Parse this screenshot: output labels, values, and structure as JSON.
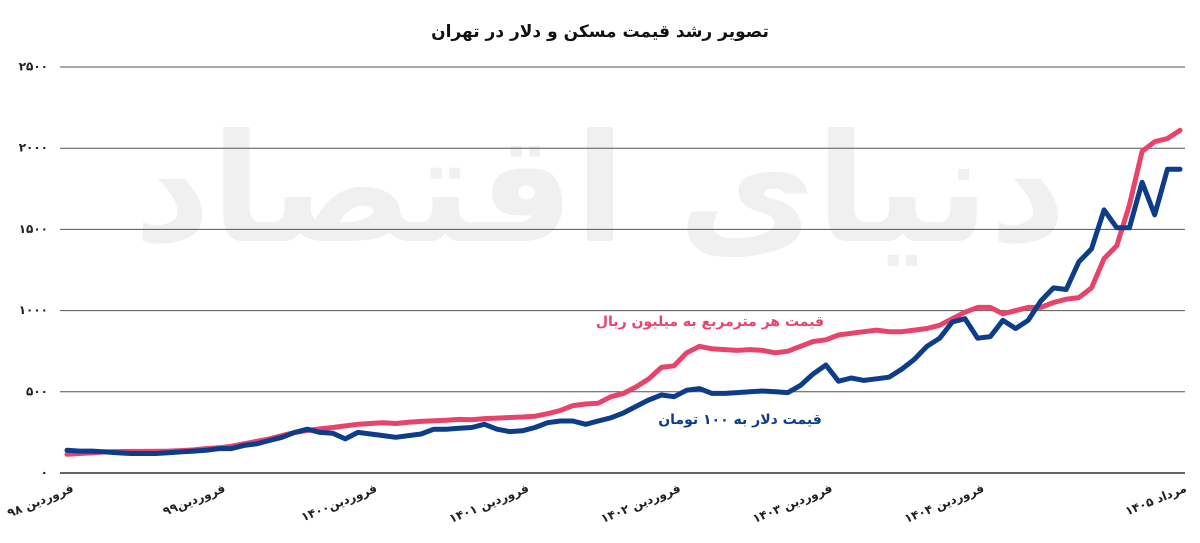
{
  "chart_data": {
    "type": "line",
    "title": "تصویر رشد قیمت مسکن  و دلار در تهران",
    "watermark": "دنیای اقتصاد",
    "categories": [
      "فروردین ۹۸",
      null,
      null,
      null,
      null,
      null,
      null,
      null,
      null,
      null,
      null,
      null,
      "فروردین۹۹",
      null,
      null,
      null,
      null,
      null,
      null,
      null,
      null,
      null,
      null,
      null,
      "فروردین۱۴۰۰",
      null,
      null,
      null,
      null,
      null,
      null,
      null,
      null,
      null,
      null,
      null,
      "فروردین ۱۴۰۱",
      null,
      null,
      null,
      null,
      null,
      null,
      null,
      null,
      null,
      null,
      null,
      "فروردین ۱۴۰۲",
      null,
      null,
      null,
      null,
      null,
      null,
      null,
      null,
      null,
      null,
      null,
      "فروردین ۱۴۰۳",
      null,
      null,
      null,
      null,
      null,
      null,
      null,
      null,
      null,
      null,
      null,
      "فروردین ۱۴۰۴",
      null,
      null,
      null,
      null,
      null,
      null,
      null,
      null,
      null,
      null,
      null,
      null,
      null,
      null,
      null,
      "مرداد ۱۴۰۵"
    ],
    "series": [
      {
        "name": "قیمت هر مترمربع به میلیون ریال",
        "color": "#e8436a",
        "values": [
          115,
          120,
          125,
          130,
          132,
          133,
          133,
          134,
          135,
          138,
          142,
          150,
          155,
          165,
          180,
          195,
          210,
          230,
          250,
          262,
          272,
          280,
          290,
          300,
          305,
          310,
          305,
          312,
          318,
          322,
          325,
          330,
          328,
          335,
          338,
          342,
          345,
          350,
          365,
          385,
          415,
          425,
          430,
          470,
          490,
          530,
          580,
          650,
          660,
          740,
          780,
          765,
          760,
          755,
          760,
          755,
          740,
          750,
          780,
          810,
          820,
          850,
          860,
          870,
          880,
          870,
          870,
          880,
          890,
          910,
          950,
          990,
          1020,
          1020,
          980,
          1000,
          1020,
          1020,
          1050,
          1070,
          1080,
          1140,
          1320,
          1400,
          1650,
          1980,
          2040,
          2060,
          2110
        ]
      },
      {
        "name": "قیمت دلار به ۱۰۰ تومان",
        "color": "#0d3d8a",
        "values": [
          140,
          135,
          135,
          130,
          125,
          120,
          120,
          120,
          125,
          130,
          135,
          140,
          150,
          150,
          170,
          180,
          200,
          220,
          250,
          270,
          250,
          245,
          210,
          250,
          240,
          230,
          220,
          230,
          240,
          270,
          270,
          275,
          280,
          300,
          270,
          255,
          260,
          280,
          310,
          320,
          320,
          300,
          320,
          340,
          370,
          410,
          450,
          480,
          470,
          510,
          520,
          490,
          490,
          495,
          500,
          505,
          500,
          495,
          540,
          610,
          665,
          565,
          585,
          570,
          580,
          590,
          640,
          700,
          780,
          830,
          930,
          950,
          830,
          840,
          940,
          890,
          940,
          1060,
          1140,
          1130,
          1300,
          1380,
          1620,
          1510,
          1510,
          1790,
          1590,
          1870,
          1870
        ]
      }
    ],
    "ylim": [
      0,
      2500
    ],
    "yticks": [
      {
        "value": 0,
        "label": "۰"
      },
      {
        "value": 500,
        "label": "۵۰۰"
      },
      {
        "value": 1000,
        "label": "۱۰۰۰"
      },
      {
        "value": 1500,
        "label": "۱۵۰۰"
      },
      {
        "value": 2000,
        "label": "۲۰۰۰"
      },
      {
        "value": 2500,
        "label": "۲۵۰۰"
      }
    ],
    "grid": true
  }
}
